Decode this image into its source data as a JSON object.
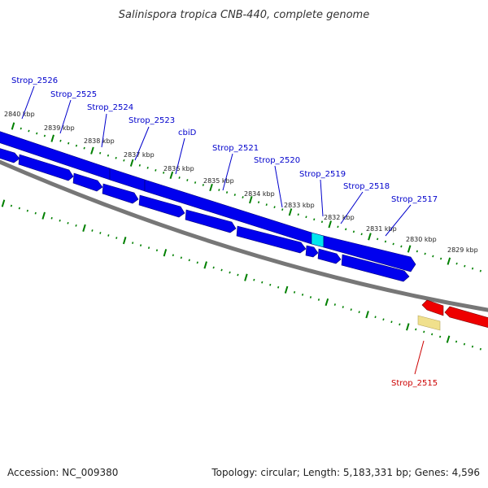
{
  "title": "Salinispora tropica CNB-440, complete genome",
  "footer": {
    "accession": "Accession: NC_009380",
    "summary": "Topology: circular; Length: 5,183,331 bp; Genes: 4,596"
  },
  "colors": {
    "forward_gene": "#0000ee",
    "reverse_gene": "#ee0000",
    "highlight_gene": "#00e5ee",
    "pseudo_gene": "#f0e08c",
    "forward_label": "#0000cc",
    "reverse_label": "#cc0000",
    "tick": "#008000",
    "backbone": "#777777"
  },
  "scale_labels": [
    "2840 kbp",
    "2839 kbp",
    "2838 kbp",
    "2837 kbp",
    "2836 kbp",
    "2835 kbp",
    "2834 kbp",
    "2833 kbp",
    "2832 kbp",
    "2831 kbp",
    "2830 kbp",
    "2829 kbp"
  ],
  "forward_gene_labels": [
    "Strop_2526",
    "Strop_2525",
    "Strop_2524",
    "Strop_2523",
    "cbiD",
    "Strop_2521",
    "Strop_2520",
    "Strop_2519",
    "Strop_2518",
    "Strop_2517"
  ],
  "reverse_gene_labels": [
    "Strop_2515"
  ]
}
